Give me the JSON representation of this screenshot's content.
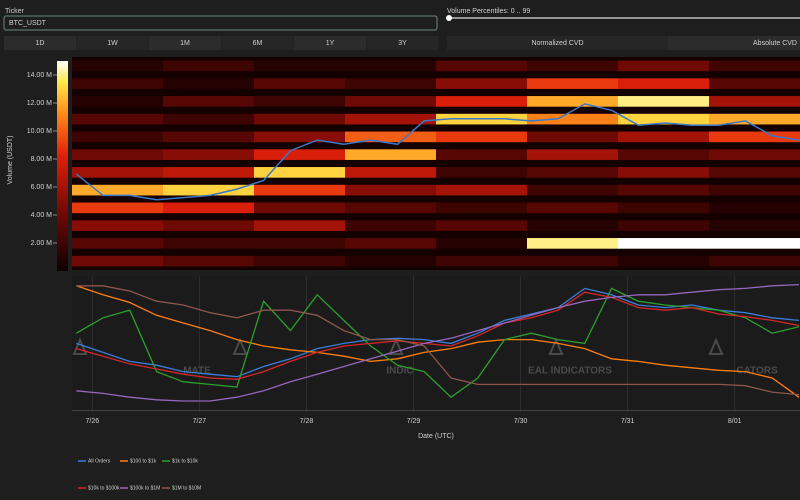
{
  "controls": {
    "ticker_label": "Ticker",
    "ticker_value": "BTC_USDT",
    "percentiles_label": "Volume Percentiles: 0 .. 99",
    "ranges": [
      "1D",
      "1W",
      "1M",
      "6M",
      "1Y",
      "3Y"
    ],
    "modes": [
      "Normalized CVD",
      "Absolute CVD"
    ]
  },
  "chart_data": [
    {
      "type": "heatmap",
      "colorbar_label": "Volume (USDT)",
      "clim": [
        0,
        15000000
      ],
      "cticks": [
        {
          "value": 2000000,
          "label": "2.00 M"
        },
        {
          "value": 4000000,
          "label": "4.00 M"
        },
        {
          "value": 6000000,
          "label": "6.00 M"
        },
        {
          "value": 8000000,
          "label": "8.00 M"
        },
        {
          "value": 10000000,
          "label": "10.00 M"
        },
        {
          "value": 12000000,
          "label": "12.00 M"
        },
        {
          "value": 14000000,
          "label": "14.00 M"
        }
      ],
      "colorscale": [
        [
          0,
          "#0d0000"
        ],
        [
          0.3,
          "#7a0a05"
        ],
        [
          0.55,
          "#e0200a"
        ],
        [
          0.75,
          "#ff8a1a"
        ],
        [
          0.9,
          "#ffe84a"
        ],
        [
          1,
          "#ffffff"
        ]
      ],
      "z": [
        [
          1000000,
          2000000,
          1000000,
          1000000,
          3000000,
          2000000,
          4000000,
          2000000
        ],
        [
          2000000,
          1000000,
          3000000,
          2000000,
          5000000,
          9000000,
          8000000,
          3000000
        ],
        [
          1000000,
          3000000,
          2000000,
          4000000,
          8000000,
          12000000,
          14000000,
          6000000
        ],
        [
          3000000,
          2000000,
          4000000,
          6000000,
          13000000,
          11000000,
          13000000,
          12000000
        ],
        [
          2000000,
          3000000,
          5000000,
          10000000,
          9000000,
          4000000,
          6000000,
          9000000
        ],
        [
          4000000,
          5000000,
          8000000,
          12000000,
          3000000,
          6000000,
          3000000,
          4000000
        ],
        [
          6000000,
          7000000,
          13000000,
          7000000,
          2000000,
          3000000,
          5000000,
          3000000
        ],
        [
          12000000,
          13000000,
          9000000,
          5000000,
          6000000,
          2000000,
          3000000,
          2000000
        ],
        [
          9000000,
          8000000,
          4000000,
          3000000,
          2000000,
          3000000,
          2000000,
          1000000
        ],
        [
          5000000,
          4000000,
          6000000,
          2000000,
          3000000,
          1000000,
          2000000,
          1000000
        ],
        [
          3000000,
          2000000,
          2000000,
          3000000,
          1000000,
          14000000,
          15000000,
          15000000
        ],
        [
          4000000,
          3000000,
          2000000,
          1000000,
          2000000,
          2000000,
          1000000,
          2000000
        ]
      ],
      "xlim": [
        25.81,
        32.61
      ],
      "ylim": [
        0,
        1
      ],
      "price_color": "#3a78c8",
      "x": [
        25.85,
        26.1,
        26.35,
        26.6,
        26.85,
        27.1,
        27.35,
        27.6,
        27.85,
        28.1,
        28.35,
        28.6,
        28.85,
        29.1,
        29.35,
        29.6,
        29.85,
        30.1,
        30.35,
        30.6,
        30.85,
        31.1,
        31.35,
        31.6,
        31.85,
        32.1,
        32.35,
        32.6
      ],
      "price": [
        0.45,
        0.35,
        0.35,
        0.33,
        0.34,
        0.35,
        0.38,
        0.42,
        0.56,
        0.61,
        0.59,
        0.61,
        0.59,
        0.7,
        0.71,
        0.71,
        0.71,
        0.7,
        0.71,
        0.78,
        0.75,
        0.68,
        0.69,
        0.68,
        0.68,
        0.7,
        0.63,
        0.61
      ]
    },
    {
      "type": "line",
      "xlabel": "Date (UTC)",
      "xlim": [
        25.81,
        32.61
      ],
      "ylim": [
        0,
        1
      ],
      "xticks": [
        {
          "value": 26,
          "label": "7/26"
        },
        {
          "value": 27,
          "label": "7/27"
        },
        {
          "value": 28,
          "label": "7/28"
        },
        {
          "value": 29,
          "label": "7/29"
        },
        {
          "value": 30,
          "label": "7/30"
        },
        {
          "value": 31,
          "label": "7/31"
        },
        {
          "value": 32,
          "label": "8/01"
        }
      ],
      "watermarks": [
        "MATE",
        "INDIC",
        "EAL INDICATORS",
        "CATORS"
      ],
      "x": [
        25.85,
        26.1,
        26.35,
        26.6,
        26.85,
        27.1,
        27.35,
        27.6,
        27.85,
        28.1,
        28.35,
        28.6,
        28.85,
        29.1,
        29.35,
        29.6,
        29.85,
        30.1,
        30.35,
        30.6,
        30.85,
        31.1,
        31.35,
        31.6,
        31.85,
        32.1,
        32.35,
        32.6
      ],
      "series": [
        {
          "name": "All Orders",
          "color": "#3b7dd8",
          "values": [
            0.52,
            0.45,
            0.38,
            0.35,
            0.3,
            0.28,
            0.26,
            0.34,
            0.4,
            0.48,
            0.52,
            0.55,
            0.56,
            0.55,
            0.52,
            0.6,
            0.7,
            0.75,
            0.8,
            0.95,
            0.9,
            0.82,
            0.8,
            0.82,
            0.78,
            0.76,
            0.72,
            0.7
          ]
        },
        {
          "name": "$100 to $1k",
          "color": "#ff7f0e",
          "values": [
            0.97,
            0.9,
            0.84,
            0.74,
            0.68,
            0.62,
            0.55,
            0.5,
            0.47,
            0.45,
            0.42,
            0.38,
            0.4,
            0.45,
            0.48,
            0.53,
            0.55,
            0.55,
            0.52,
            0.48,
            0.4,
            0.38,
            0.35,
            0.33,
            0.31,
            0.3,
            0.25,
            0.1
          ]
        },
        {
          "name": "$1k to $10k",
          "color": "#2ca02c",
          "values": [
            0.6,
            0.72,
            0.78,
            0.3,
            0.22,
            0.2,
            0.18,
            0.85,
            0.62,
            0.9,
            0.7,
            0.5,
            0.35,
            0.3,
            0.1,
            0.25,
            0.55,
            0.6,
            0.55,
            0.52,
            0.95,
            0.85,
            0.82,
            0.8,
            0.78,
            0.72,
            0.6,
            0.65
          ]
        },
        {
          "name": "$10k to $100k",
          "color": "#d62728",
          "values": [
            0.48,
            0.42,
            0.36,
            0.32,
            0.28,
            0.25,
            0.24,
            0.3,
            0.38,
            0.45,
            0.5,
            0.52,
            0.54,
            0.52,
            0.5,
            0.58,
            0.68,
            0.72,
            0.78,
            0.92,
            0.88,
            0.8,
            0.78,
            0.8,
            0.75,
            0.73,
            0.7,
            0.66
          ]
        },
        {
          "name": "$100k to $1M",
          "color": "#9467bd",
          "values": [
            0.15,
            0.13,
            0.1,
            0.08,
            0.07,
            0.07,
            0.1,
            0.15,
            0.22,
            0.28,
            0.34,
            0.4,
            0.46,
            0.52,
            0.56,
            0.62,
            0.68,
            0.74,
            0.8,
            0.85,
            0.88,
            0.9,
            0.9,
            0.92,
            0.94,
            0.95,
            0.97,
            0.98
          ]
        },
        {
          "name": "$1M to $10M",
          "color": "#8c564b",
          "values": [
            0.97,
            0.97,
            0.93,
            0.85,
            0.82,
            0.76,
            0.72,
            0.78,
            0.78,
            0.74,
            0.62,
            0.55,
            0.55,
            0.5,
            0.25,
            0.2,
            0.2,
            0.2,
            0.2,
            0.2,
            0.2,
            0.2,
            0.2,
            0.2,
            0.2,
            0.19,
            0.14,
            0.12
          ]
        }
      ]
    }
  ]
}
